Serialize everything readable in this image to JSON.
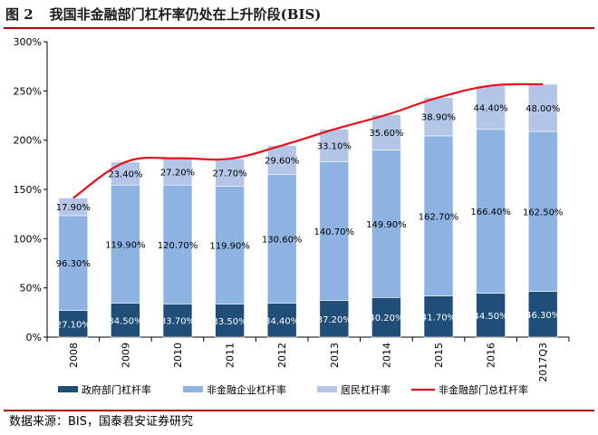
{
  "figure": {
    "number": "图 2",
    "title": "我国非金融部门杠杆率仍处在上升阶段(BIS)"
  },
  "source": "数据来源：BIS，国泰君安证券研究",
  "colors": {
    "government": "#1f4e79",
    "corporate": "#8db3e2",
    "household": "#b4c6e7",
    "total_line": "#e8101a",
    "accent_rule": "#b30000",
    "label_dark_text": "#ffffff",
    "label_light_text": "#000000"
  },
  "chart_data": {
    "type": "bar",
    "stacked": true,
    "title": "我国非金融部门杠杆率仍处在上升阶段(BIS)",
    "categories": [
      "2008",
      "2009",
      "2010",
      "2011",
      "2012",
      "2013",
      "2014",
      "2015",
      "2016",
      "2017Q3"
    ],
    "series": [
      {
        "name": "政府部门杠杆率",
        "type": "bar",
        "values": [
          27.1,
          34.5,
          33.7,
          33.5,
          34.4,
          37.2,
          40.2,
          41.7,
          44.5,
          46.3
        ],
        "labels": [
          "27.10%",
          "34.50%",
          "33.70%",
          "33.50%",
          "34.40%",
          "37.20%",
          "40.20%",
          "41.70%",
          "44.50%",
          "46.30%"
        ]
      },
      {
        "name": "非金融企业杠杆率",
        "type": "bar",
        "values": [
          96.3,
          119.9,
          120.7,
          119.9,
          130.6,
          140.7,
          149.9,
          162.7,
          166.4,
          162.5
        ],
        "labels": [
          "96.30%",
          "119.90%",
          "120.70%",
          "119.90%",
          "130.60%",
          "140.70%",
          "149.90%",
          "162.70%",
          "166.40%",
          "162.50%"
        ]
      },
      {
        "name": "居民杠杆率",
        "type": "bar",
        "values": [
          17.9,
          23.4,
          27.2,
          27.7,
          29.6,
          33.1,
          35.6,
          38.9,
          44.4,
          48.0
        ],
        "labels": [
          "17.90%",
          "23.40%",
          "27.20%",
          "27.70%",
          "29.60%",
          "33.10%",
          "35.60%",
          "38.90%",
          "44.40%",
          "48.00%"
        ]
      },
      {
        "name": "非金融部门总杠杆率",
        "type": "line",
        "values": [
          141.3,
          177.8,
          181.6,
          181.1,
          194.6,
          211.0,
          225.7,
          243.3,
          255.3,
          256.8
        ]
      }
    ],
    "yticks": [
      "0%",
      "50%",
      "100%",
      "150%",
      "200%",
      "250%",
      "300%"
    ],
    "ylim": [
      0,
      300
    ],
    "xlabel": "",
    "ylabel": "",
    "grid": false,
    "legend": "bottom"
  }
}
